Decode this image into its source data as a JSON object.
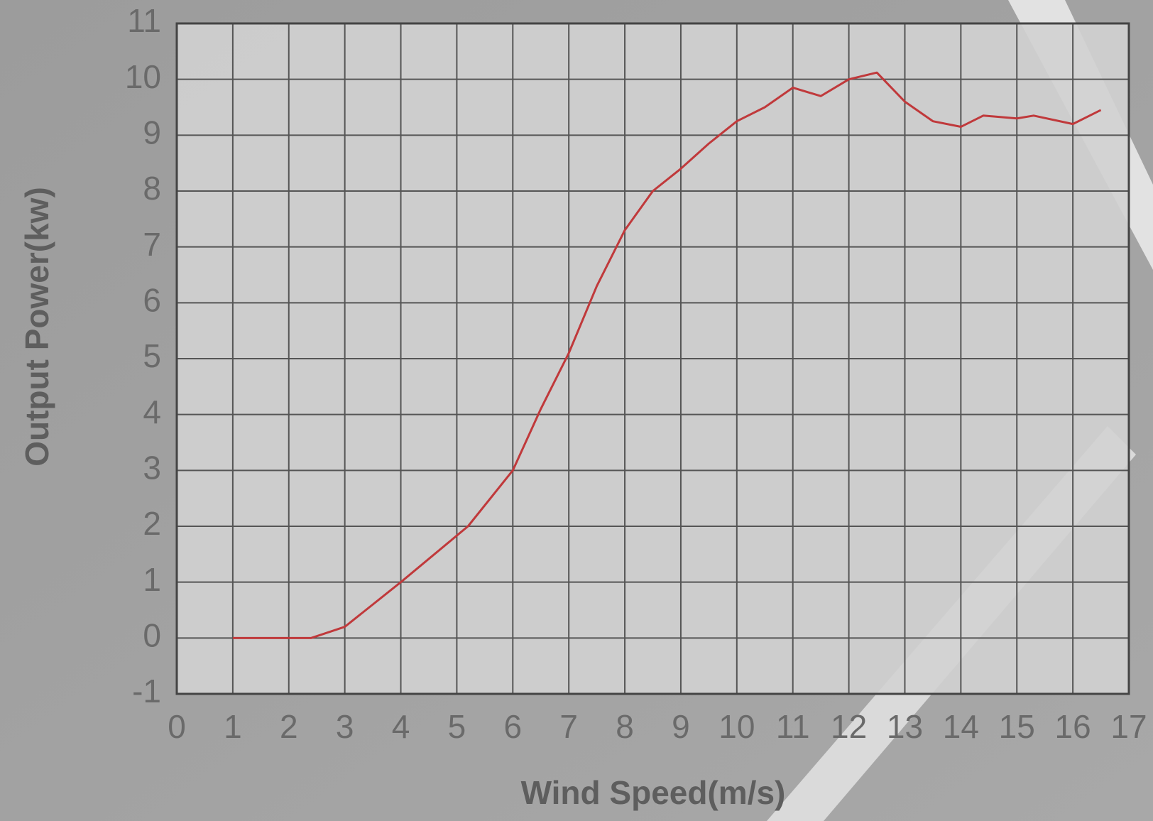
{
  "chart_data": {
    "type": "line",
    "x_label": "Wind Speed(m/s)",
    "y_label": "Output Power(kw)",
    "x": [
      1,
      2,
      2.4,
      3,
      4,
      5.2,
      6,
      6.5,
      7,
      7.5,
      8,
      8.5,
      9,
      9.5,
      10,
      10.5,
      11,
      11.5,
      12,
      12.5,
      13,
      13.5,
      14,
      14.4,
      15,
      15.3,
      16,
      16.5
    ],
    "series": [
      {
        "color": "#c0393b",
        "values": [
          0,
          0,
          0,
          0.2,
          1.0,
          2.0,
          3.0,
          4.1,
          5.1,
          6.3,
          7.3,
          8.0,
          8.4,
          8.85,
          9.25,
          9.5,
          9.85,
          9.7,
          10.0,
          10.12,
          9.6,
          9.25,
          9.15,
          9.35,
          9.3,
          9.35,
          9.2,
          9.45
        ]
      }
    ],
    "xlim": [
      0,
      17
    ],
    "ylim": [
      -1,
      11
    ],
    "xticks": [
      0,
      1,
      2,
      3,
      4,
      5,
      6,
      7,
      8,
      9,
      10,
      11,
      12,
      13,
      14,
      15,
      16,
      17
    ],
    "yticks": [
      -1,
      0,
      1,
      2,
      3,
      4,
      5,
      6,
      7,
      8,
      9,
      10,
      11
    ],
    "grid": true
  }
}
